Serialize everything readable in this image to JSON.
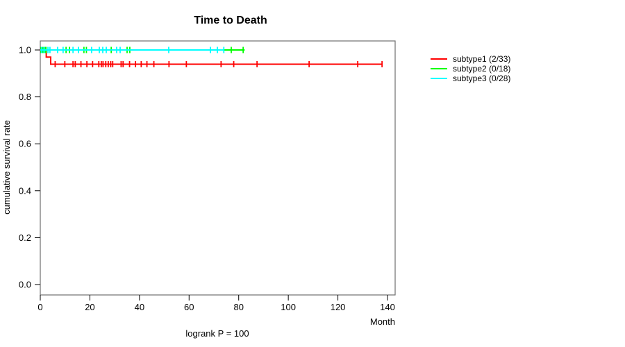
{
  "title": "Time to Death",
  "footer": "logrank P = 100",
  "axes": {
    "x_label": "Month",
    "y_label": "cumulative survival rate",
    "x_ticks": [
      0,
      20,
      40,
      60,
      80,
      100,
      120,
      140
    ],
    "y_ticks": [
      0.0,
      0.2,
      0.4,
      0.6,
      0.8,
      1.0
    ]
  },
  "legend": {
    "items": [
      {
        "label": "subtype1 (2/33)",
        "color": "#ff0000"
      },
      {
        "label": "subtype2 (0/18)",
        "color": "#00ff00"
      },
      {
        "label": "subtype3 (0/28)",
        "color": "#00ffff"
      }
    ]
  },
  "chart_data": {
    "type": "line",
    "subtype": "kaplan-meier-step",
    "title": "Time to Death",
    "xlabel": "Month",
    "ylabel": "cumulative survival rate",
    "xlim": [
      0,
      143
    ],
    "ylim": [
      0.0,
      1.04
    ],
    "x_ticks": [
      0,
      20,
      40,
      60,
      80,
      100,
      120,
      140
    ],
    "y_ticks": [
      0.0,
      0.2,
      0.4,
      0.6,
      0.8,
      1.0
    ],
    "grid": false,
    "legend_position": "right-outside",
    "annotation": "logrank P = 100",
    "series": [
      {
        "name": "subtype1 (2/33)",
        "color": "#ff0000",
        "n": 33,
        "events": 2,
        "step_points": [
          [
            0,
            1.0
          ],
          [
            2.4,
            1.0
          ],
          [
            2.4,
            0.9697
          ],
          [
            4.2,
            0.9697
          ],
          [
            4.2,
            0.9394
          ],
          [
            137.8,
            0.9394
          ]
        ],
        "censor_times": [
          6.0,
          9.9,
          13.2,
          14.1,
          16.4,
          18.8,
          21.1,
          23.6,
          24.6,
          25.3,
          26.4,
          27.4,
          28.4,
          29.2,
          32.6,
          33.4,
          36.0,
          38.4,
          40.7,
          43.0,
          45.8,
          51.9,
          58.9,
          72.9,
          78.0,
          87.4,
          108.4,
          128.0,
          137.8
        ]
      },
      {
        "name": "subtype2 (0/18)",
        "color": "#00ff00",
        "n": 18,
        "events": 0,
        "step_points": [
          [
            0,
            1.0
          ],
          [
            82.4,
            1.0
          ]
        ],
        "censor_times": [
          0.3,
          1.1,
          2.0,
          2.3,
          10.4,
          11.8,
          17.6,
          18.6,
          28.6,
          35.0,
          36.1,
          77.0,
          81.8
        ]
      },
      {
        "name": "subtype3 (0/28)",
        "color": "#00ffff",
        "n": 28,
        "events": 0,
        "step_points": [
          [
            0,
            1.0
          ],
          [
            74.0,
            1.0
          ]
        ],
        "censor_times": [
          0.6,
          1.5,
          3.1,
          3.9,
          7.0,
          9.2,
          13.2,
          15.4,
          20.7,
          23.8,
          25.2,
          26.6,
          30.8,
          32.2,
          51.8,
          68.6,
          71.4,
          74.0
        ]
      }
    ]
  }
}
